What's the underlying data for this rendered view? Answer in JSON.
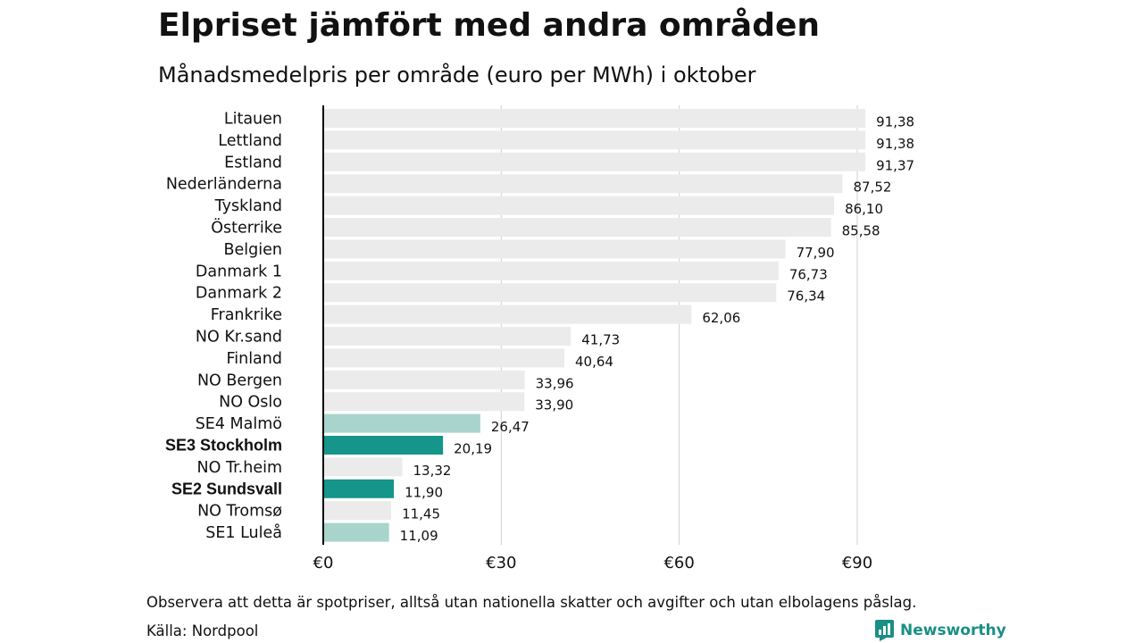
{
  "chart_data": {
    "type": "bar",
    "orientation": "horizontal",
    "title": "Elpriset jämfört med andra områden",
    "subtitle": "Månadsmedelpris per område (euro per MWh) i oktober",
    "categories": [
      "Litauen",
      "Lettland",
      "Estland",
      "Nederländerna",
      "Tyskland",
      "Österrike",
      "Belgien",
      "Danmark 1",
      "Danmark 2",
      "Frankrike",
      "NO Kr.sand",
      "Finland",
      "NO Bergen",
      "NO Oslo",
      "SE4 Malmö",
      "SE3 Stockholm",
      "NO Tr.heim",
      "SE2 Sundsvall",
      "NO Tromsø",
      "SE1 Luleå"
    ],
    "values": [
      91.38,
      91.38,
      91.37,
      87.52,
      86.1,
      85.58,
      77.9,
      76.73,
      76.34,
      62.06,
      41.73,
      40.64,
      33.96,
      33.9,
      26.47,
      20.19,
      13.32,
      11.9,
      11.45,
      11.09
    ],
    "value_labels": [
      "91,38",
      "91,38",
      "91,37",
      "87,52",
      "86,10",
      "85,58",
      "77,90",
      "76,73",
      "76,34",
      "62,06",
      "41,73",
      "40,64",
      "33,96",
      "33,90",
      "26,47",
      "20,19",
      "13,32",
      "11,90",
      "11,45",
      "11,09"
    ],
    "bar_styles": [
      "other",
      "other",
      "other",
      "other",
      "other",
      "other",
      "other",
      "other",
      "other",
      "other",
      "other",
      "other",
      "other",
      "other",
      "se-light",
      "se-dark",
      "other",
      "se-dark",
      "other",
      "se-light"
    ],
    "xlim": [
      0,
      100
    ],
    "xticks": [
      0,
      30,
      60,
      90
    ],
    "xtick_labels": [
      "€0",
      "€30",
      "€60",
      "€90"
    ],
    "grid": true,
    "colors": {
      "other": "#ebebeb",
      "se-light": "#a8d4cc",
      "se-dark": "#16958a",
      "grid": "#cfcfcf",
      "axis": "#000000"
    }
  },
  "footer": {
    "note": "Observera att detta är spotpriser, alltså utan nationella skatter och avgifter och utan elbolagens påslag.",
    "source": "Källa: Nordpool",
    "brand": "Newsworthy"
  }
}
